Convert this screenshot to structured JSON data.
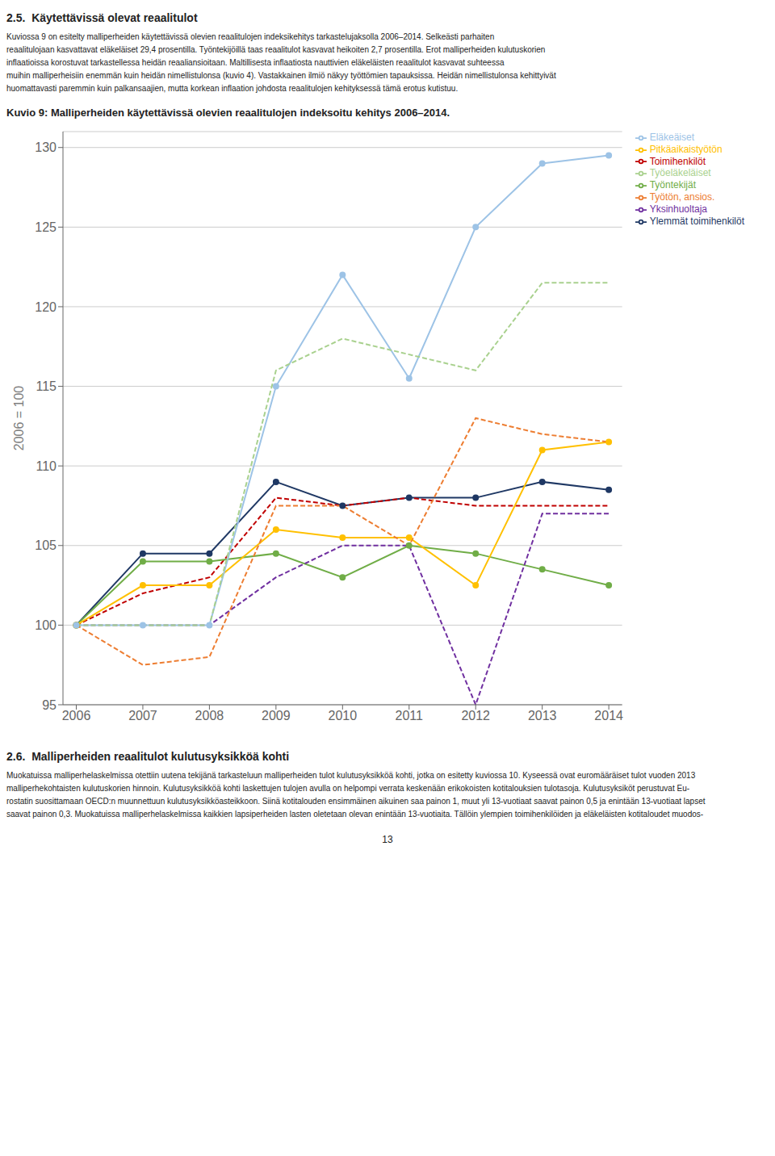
{
  "chart_data": {
    "type": "line",
    "title": "Kuvio 9: Malliperheiden käytettävissä olevien reaalitulojen indeksoitu kehitys 2006–2014.",
    "ylabel": "2006 = 100",
    "x": [
      2006,
      2007,
      2008,
      2009,
      2010,
      2011,
      2012,
      2013,
      2014
    ],
    "series": [
      {
        "name": "Ylemmät toimihenkilöt",
        "color": "#1f3864",
        "marker": "o",
        "line_style": "solid",
        "values": [
          100,
          104.5,
          104.5,
          109,
          107.5,
          108,
          108,
          109,
          108.5
        ]
      },
      {
        "name": "Toimihenkilöt",
        "color": "#c00000",
        "marker": "none",
        "line_style": "dashed",
        "values": [
          100,
          102,
          103,
          108,
          107.5,
          108,
          107.5,
          107.5,
          107.5
        ]
      },
      {
        "name": "Työntekijät",
        "color": "#70ad47",
        "marker": "o",
        "line_style": "solid",
        "values": [
          100,
          104,
          104,
          104.5,
          103,
          105,
          104.5,
          103.5,
          102.5
        ]
      },
      {
        "name": "Yksinhuoltaja",
        "color": "#7030a0",
        "marker": "none",
        "line_style": "dashed",
        "values": [
          100,
          100,
          100,
          103,
          105,
          105,
          95,
          107,
          107
        ]
      },
      {
        "name": "Pitkäaikaistyötön",
        "color": "#ffc000",
        "marker": "o",
        "line_style": "solid",
        "values": [
          100,
          102.5,
          102.5,
          106,
          105.5,
          105.5,
          102.5,
          111,
          111.5
        ]
      },
      {
        "name": "Työtön, ansios.",
        "color": "#ed7d31",
        "marker": "none",
        "line_style": "dashed",
        "values": [
          100,
          97.5,
          98,
          107.5,
          107.5,
          105,
          113,
          112,
          111.5
        ]
      },
      {
        "name": "Eläkeäiset",
        "color": "#9dc3e6",
        "marker": "o",
        "line_style": "solid",
        "values": [
          100,
          100,
          100,
          115,
          122,
          115.5,
          125,
          129,
          129.5
        ]
      },
      {
        "name": "Työeläkeläiset",
        "color": "#a9d18e",
        "marker": "none",
        "line_style": "dashed",
        "values": [
          100,
          100,
          100,
          116,
          118,
          117,
          116,
          121.5,
          121.5
        ]
      }
    ],
    "xlim": [
      2005.8,
      2014.2
    ],
    "xticks": [
      2006,
      2007,
      2008,
      2009,
      2010,
      2011,
      2012,
      2013,
      2014
    ],
    "ylim": [
      95,
      131
    ],
    "yticks": [
      95,
      100,
      105,
      110,
      115,
      120,
      125,
      130
    ],
    "grid": true,
    "legend": "upper right",
    "annotations": [
      "2.5.\tKäytettävissä olevat reaalitulot",
      "Kuviossa 9 on esitelty malliperheiden käytettävissä olevien reaalitulojen indeksikehitys tarkastelujaksolla 2006–2014. Selkeästi parhaiten\nreaalitulojaan kasvattavat eläkeläiset 29,4 prosentilla. Työntekijöillä taas reaalitulot kasvavat heikoiten 2,7 prosentilla. Erot malliperheiden kulutuskorien\ninflaatioissa korostuvat tarkastellessa heidän reaaliansioitaan. Maltillisesta inflaatiosta nauttivien eläkeläisten reaalitulot kasvavat suhteessa\nmuihin malliperheisiin enemmän kuin heidän nimellistulonsa (kuvio 4). Vastakkainen ilmiö näkyy työttömien tapauksissa. Heidän nimellistulonsa kehittyivät\nhuomattavasti paremmin kuin palkansaajien, mutta korkean inflaation johdosta reaalitulojen kehityksessä tämä erotus kutistuu.",
      "2.6.\tMalliperheiden reaalitulot kulutusyksikköä kohti",
      "Muokatuissa malliperhelaskelmissa otettiin uutena tekijänä tarkasteluun malliperheiden tulot kulutusyksikköä kohti, jotka on esitetty kuviossa 10. Kyseessä ovat euromääräiset tulot vuoden 2013\nmalliperhekohtaisten kulutuskorien hinnoin. Kulutusyksikköä kohti laskettujen tulojen avulla on helpompi verrata keskenään erikokoisten kotitalouksien tulotasoja. Kulutusyksiköt perustuvat Eu-\nrostatin suosittamaan OECD:n muunnettuun kulutusyksikköasteikkoon. Siinä kotitalouden ensimmäinen aikuinen saa painon 1, muut yli 13-vuotiaat saavat painon 0,5 ja enintään 13-vuotiaat lapset\nsaavat painon 0,3. Muokatuissa malliperhelaskelmissa kaikkien lapsiperheiden lasten oletetaan olevan enintään 13-vuotiaita. Tällöin ylempien toimihenkilöiden ja eläkeläisten kotitaloudet muodos-",
      "13"
    ]
  }
}
